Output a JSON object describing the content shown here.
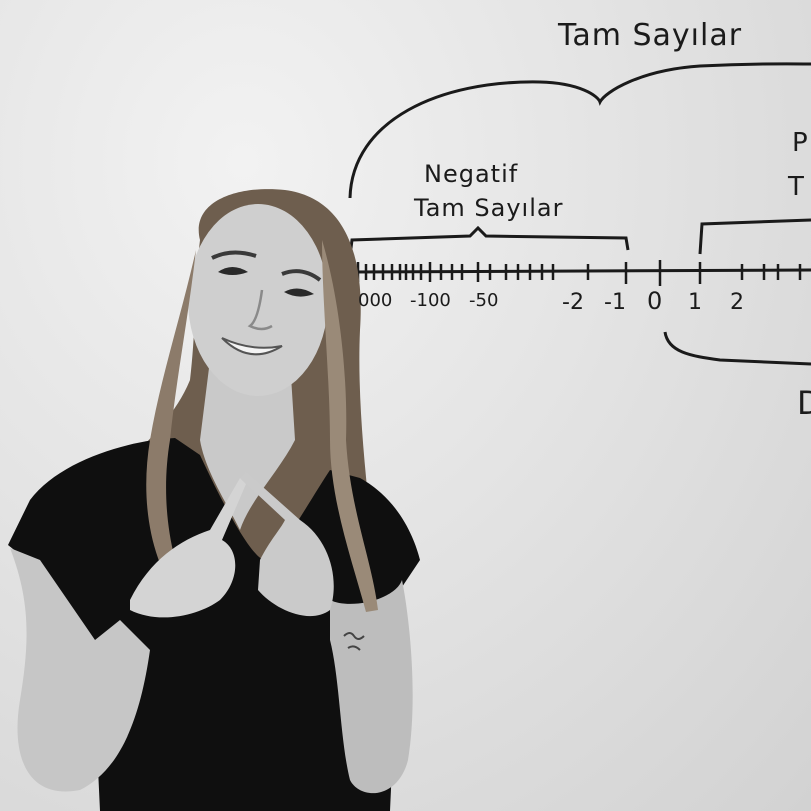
{
  "board": {
    "title": "Tam Sayılar",
    "negative_label_line1": "Negatif",
    "negative_label_line2": "Tam Sayılar",
    "tick_labels": {
      "t1000": "000",
      "t100": "-100",
      "t50": "-50",
      "tm2": "-2",
      "tm1": "-1",
      "t0": "0",
      "t1": "1",
      "t2": "2"
    },
    "edge_p": "P",
    "edge_t": "T",
    "edge_d": "D"
  },
  "subject": {
    "shirt_color": "#0f0f0f",
    "hair_color": "#5a4a3a"
  }
}
